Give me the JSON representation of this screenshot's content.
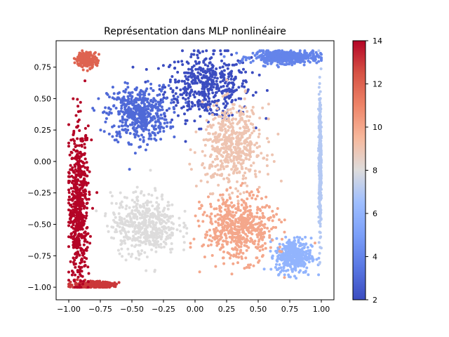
{
  "chart_data": {
    "type": "scatter",
    "title": "Représentation dans MLP nonlinéaire",
    "xlabel": "",
    "ylabel": "",
    "xlim": [
      -1.1,
      1.1
    ],
    "ylim": [
      -1.1,
      0.96
    ],
    "x_ticks": [
      "−1.00",
      "−0.75",
      "−0.50",
      "−0.25",
      "0.00",
      "0.25",
      "0.50",
      "0.75",
      "1.00"
    ],
    "y_ticks": [
      "−1.00",
      "−0.75",
      "−0.50",
      "−0.25",
      "0.00",
      "0.25",
      "0.50",
      "0.75"
    ],
    "grid": false,
    "colorbar": {
      "range": [
        2,
        14
      ],
      "ticks": [
        "2",
        "4",
        "6",
        "8",
        "10",
        "12",
        "14"
      ],
      "colormap": "coolwarm"
    },
    "clusters": [
      {
        "value": 2,
        "center": [
          0.1,
          0.6
        ],
        "spread": [
          0.17,
          0.13
        ],
        "count": 500
      },
      {
        "value": 3,
        "center": [
          -0.45,
          0.38
        ],
        "spread": [
          0.12,
          0.11
        ],
        "count": 500
      },
      {
        "value": 4,
        "center": [
          0.72,
          0.83
        ],
        "spread": [
          0.13,
          0.025
        ],
        "count": 450
      },
      {
        "value": 6,
        "center": [
          0.78,
          -0.75
        ],
        "spread": [
          0.07,
          0.07
        ],
        "count": 400
      },
      {
        "value": 7,
        "center": [
          0.99,
          0.0
        ],
        "spread": [
          0.005,
          0.27
        ],
        "count": 350
      },
      {
        "value": 8,
        "center": [
          -0.4,
          -0.5
        ],
        "spread": [
          0.13,
          0.12
        ],
        "count": 500
      },
      {
        "value": 9,
        "center": [
          0.3,
          0.12
        ],
        "spread": [
          0.12,
          0.16
        ],
        "count": 500
      },
      {
        "value": 10,
        "center": [
          0.35,
          -0.53
        ],
        "spread": [
          0.14,
          0.13
        ],
        "count": 550
      },
      {
        "value": 12,
        "center": [
          -0.86,
          0.81
        ],
        "spread": [
          0.04,
          0.03
        ],
        "count": 200
      },
      {
        "value": 13,
        "center": [
          -0.82,
          -0.98
        ],
        "spread": [
          0.09,
          0.013
        ],
        "count": 300
      },
      {
        "value": 14,
        "center": [
          -0.92,
          -0.35
        ],
        "spread": [
          0.04,
          0.3
        ],
        "count": 600
      }
    ]
  }
}
